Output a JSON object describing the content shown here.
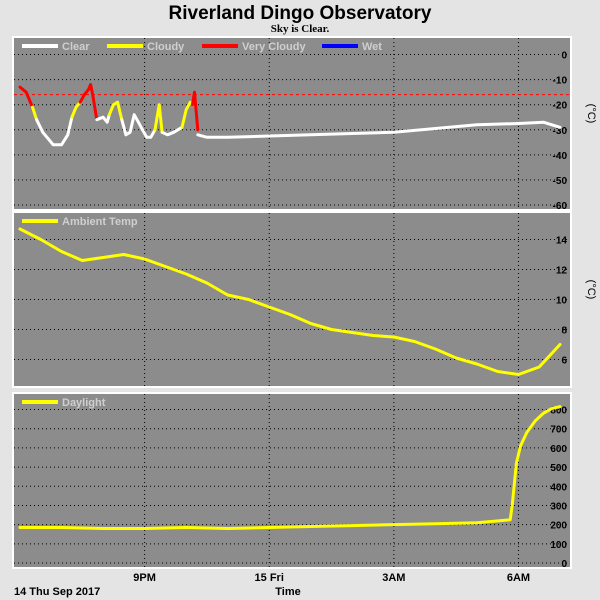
{
  "title": "Riverland Dingo Observatory",
  "subtitle": "Sky is Clear.",
  "x_axis": {
    "label": "Time",
    "start_label": "14 Thu Sep 2017",
    "ticks": [
      {
        "label": "9PM",
        "t": 3.0
      },
      {
        "label": "15 Fri",
        "t": 6.0
      },
      {
        "label": "3AM",
        "t": 9.0
      },
      {
        "label": "6AM",
        "t": 12.0
      }
    ],
    "range_hours": [
      0.0,
      13.0
    ]
  },
  "colors": {
    "plot_bg": "#8c8c8c",
    "frame_bg": "#e4e4e4",
    "grid": "#000000",
    "clear": "#ffffff",
    "cloudy": "#ffff00",
    "very_cloudy": "#ff0000",
    "wet": "#0000ff",
    "ambient": "#ffff00",
    "daylight": "#ffff00",
    "threshold": "#ff0000"
  },
  "chart_data": [
    {
      "type": "line",
      "panel": "sky",
      "unit": "(°C)",
      "ylim": [
        -60,
        5
      ],
      "yticks": [
        0,
        -10,
        -20,
        -30,
        -40,
        -50,
        -60
      ],
      "grid": true,
      "legend_position": "top-left",
      "legend": [
        "Clear",
        "Cloudy",
        "Very Cloudy",
        "Wet"
      ],
      "threshold": -16,
      "series": [
        {
          "name": "Very Cloudy",
          "x": [
            0.0,
            0.15,
            0.3
          ],
          "y": [
            -13,
            -15,
            -21
          ]
        },
        {
          "name": "Cloudy",
          "x": [
            0.3,
            0.4
          ],
          "y": [
            -21,
            -26
          ]
        },
        {
          "name": "Clear",
          "x": [
            0.4,
            0.55,
            0.7,
            0.8,
            1.0,
            1.15,
            1.25
          ],
          "y": [
            -26,
            -31,
            -34,
            -36,
            -36,
            -32,
            -25
          ]
        },
        {
          "name": "Cloudy",
          "x": [
            1.25,
            1.35,
            1.45
          ],
          "y": [
            -25,
            -21,
            -19
          ]
        },
        {
          "name": "Very Cloudy",
          "x": [
            1.45,
            1.55,
            1.65,
            1.7,
            1.75,
            1.85
          ],
          "y": [
            -19,
            -16,
            -14,
            -12,
            -16,
            -26
          ]
        },
        {
          "name": "Clear",
          "x": [
            1.85,
            2.0,
            2.1,
            2.15
          ],
          "y": [
            -26,
            -25,
            -27,
            -24
          ]
        },
        {
          "name": "Cloudy",
          "x": [
            2.15,
            2.25,
            2.35,
            2.45
          ],
          "y": [
            -24,
            -20,
            -19,
            -26
          ]
        },
        {
          "name": "Clear",
          "x": [
            2.45,
            2.55,
            2.65,
            2.75,
            2.85,
            2.95
          ],
          "y": [
            -26,
            -32,
            -31,
            -24,
            -27,
            -30
          ]
        },
        {
          "name": "Clear",
          "x": [
            2.95,
            3.05,
            3.15,
            3.25
          ],
          "y": [
            -30,
            -33,
            -33,
            -30
          ]
        },
        {
          "name": "Cloudy",
          "x": [
            3.25,
            3.35,
            3.42
          ],
          "y": [
            -30,
            -20,
            -31
          ]
        },
        {
          "name": "Clear",
          "x": [
            3.42,
            3.55,
            3.7,
            3.8,
            3.9
          ],
          "y": [
            -31,
            -32,
            -31,
            -30,
            -29
          ]
        },
        {
          "name": "Cloudy",
          "x": [
            3.9,
            4.0,
            4.1,
            4.15
          ],
          "y": [
            -29,
            -22,
            -19,
            -20
          ]
        },
        {
          "name": "Very Cloudy",
          "x": [
            4.15,
            4.2,
            4.28
          ],
          "y": [
            -20,
            -15,
            -30
          ]
        },
        {
          "name": "Clear",
          "x": [
            4.28,
            4.5,
            5.0,
            6.0,
            7.0,
            8.0,
            9.0,
            10.0,
            11.0,
            12.0,
            12.6,
            13.0
          ],
          "y": [
            -32,
            -33,
            -33,
            -32.5,
            -32,
            -31.5,
            -31,
            -29.5,
            -28,
            -27.5,
            -27,
            -29
          ]
        }
      ]
    },
    {
      "type": "line",
      "panel": "ambient",
      "unit": "(°C)",
      "ylim": [
        4.5,
        15.5
      ],
      "yticks": [
        14,
        12,
        10,
        8,
        6
      ],
      "grid": true,
      "legend_position": "top-left",
      "series": [
        {
          "name": "Ambient Temp",
          "x": [
            0.0,
            0.5,
            1.0,
            1.5,
            2.0,
            2.5,
            3.0,
            3.5,
            4.0,
            4.5,
            5.0,
            5.5,
            6.0,
            6.5,
            7.0,
            7.5,
            8.0,
            8.5,
            9.0,
            9.5,
            10.0,
            10.5,
            11.0,
            11.5,
            12.0,
            12.5,
            13.0
          ],
          "y": [
            14.7,
            14.0,
            13.2,
            12.6,
            12.8,
            13.0,
            12.7,
            12.2,
            11.7,
            11.1,
            10.3,
            10.0,
            9.5,
            9.0,
            8.4,
            8.0,
            7.8,
            7.6,
            7.5,
            7.2,
            6.7,
            6.1,
            5.7,
            5.2,
            5.0,
            5.5,
            7.0
          ]
        }
      ]
    },
    {
      "type": "line",
      "panel": "daylight",
      "unit": "",
      "ylim": [
        0,
        860
      ],
      "yticks": [
        800,
        700,
        600,
        500,
        400,
        300,
        200,
        100,
        0
      ],
      "grid": true,
      "legend_position": "top-left",
      "series": [
        {
          "name": "Daylight",
          "x": [
            0.0,
            1.0,
            2.0,
            3.0,
            4.0,
            5.0,
            6.0,
            7.0,
            8.0,
            9.0,
            10.0,
            11.0,
            11.8,
            11.85,
            11.95,
            12.05,
            12.2,
            12.4,
            12.6,
            12.8,
            13.0
          ],
          "y": [
            185,
            185,
            180,
            180,
            185,
            180,
            185,
            190,
            195,
            200,
            205,
            210,
            225,
            300,
            520,
            610,
            680,
            740,
            780,
            805,
            815
          ]
        }
      ]
    }
  ]
}
